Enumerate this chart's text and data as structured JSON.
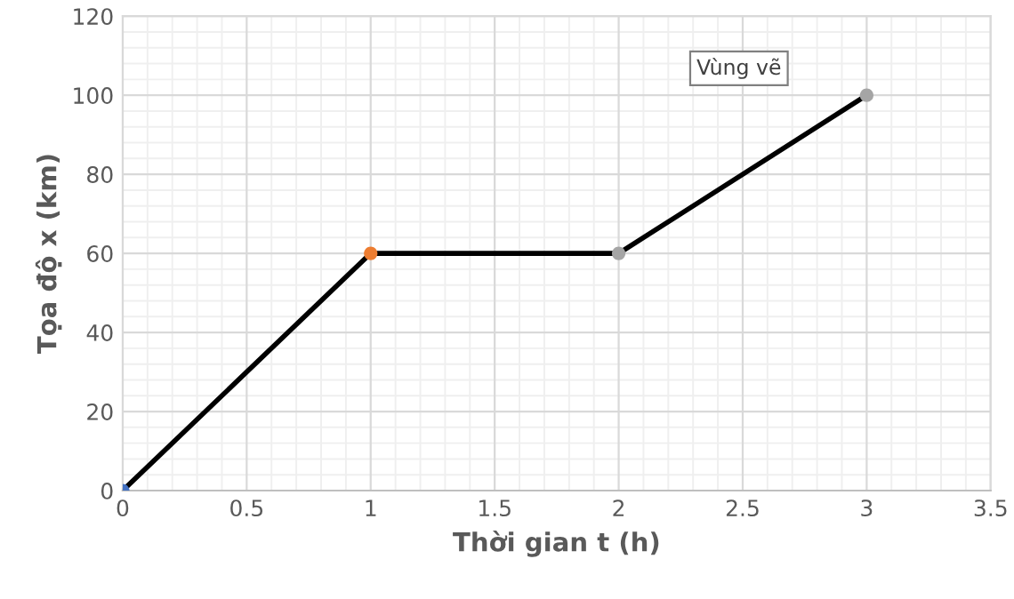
{
  "chart_data": {
    "type": "line",
    "xlabel": "Thời gian t (h)",
    "ylabel": "Tọa độ x (km)",
    "x": [
      0,
      1,
      2,
      3
    ],
    "series": [
      {
        "color": "#000000",
        "colors": [
          "#4472c4",
          "#ed7d31",
          "#a5a5a5",
          "#a5a5a5"
        ],
        "values": [
          0,
          60,
          60,
          100
        ]
      }
    ],
    "xlim": [
      0,
      3.5
    ],
    "xticks": [
      0,
      0.5,
      1,
      1.5,
      2,
      2.5,
      3,
      3.5
    ],
    "ylim": [
      0,
      120
    ],
    "yticks": [
      0,
      20,
      40,
      60,
      80,
      100,
      120
    ],
    "grid": true,
    "marker": "circle",
    "line_style": "solid",
    "annotations": [
      "Vùng vẽ"
    ]
  }
}
